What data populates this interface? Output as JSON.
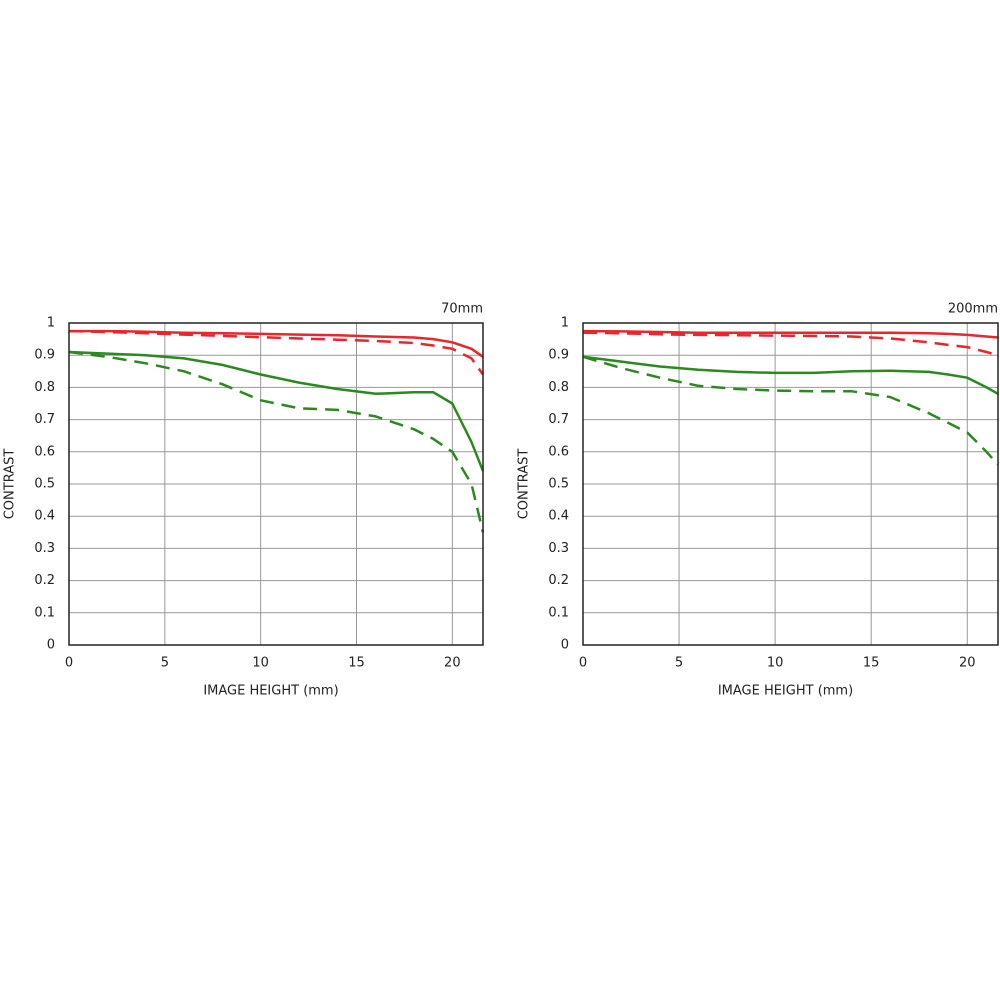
{
  "chart_data": [
    {
      "type": "line",
      "title": "70mm",
      "ylabel": "CONTRAST",
      "xlabel": "IMAGE HEIGHT (mm)",
      "x": [
        0,
        2,
        4,
        6,
        8,
        10,
        12,
        14,
        16,
        18,
        19,
        20,
        21,
        21.6
      ],
      "series": [
        {
          "color": "#e8262b",
          "dashed": false,
          "values": [
            0.975,
            0.975,
            0.973,
            0.97,
            0.968,
            0.966,
            0.964,
            0.962,
            0.958,
            0.955,
            0.95,
            0.94,
            0.92,
            0.895
          ]
        },
        {
          "color": "#e8262b",
          "dashed": true,
          "values": [
            0.975,
            0.972,
            0.968,
            0.964,
            0.96,
            0.956,
            0.952,
            0.948,
            0.944,
            0.938,
            0.93,
            0.92,
            0.89,
            0.84
          ]
        },
        {
          "color": "#2a8a1f",
          "dashed": false,
          "values": [
            0.91,
            0.905,
            0.9,
            0.89,
            0.87,
            0.84,
            0.815,
            0.795,
            0.78,
            0.785,
            0.785,
            0.75,
            0.63,
            0.54
          ]
        },
        {
          "color": "#2a8a1f",
          "dashed": true,
          "values": [
            0.91,
            0.895,
            0.875,
            0.85,
            0.81,
            0.76,
            0.735,
            0.73,
            0.71,
            0.67,
            0.64,
            0.6,
            0.5,
            0.35
          ]
        }
      ],
      "xlim": [
        0,
        21.6
      ],
      "xticks": [
        0,
        5,
        10,
        15,
        20
      ],
      "ylim": [
        0,
        1
      ],
      "yticks": [
        0,
        0.1,
        0.2,
        0.3,
        0.4,
        0.5,
        0.6,
        0.7,
        0.8,
        0.9,
        1
      ],
      "grid": true
    },
    {
      "type": "line",
      "title": "200mm",
      "ylabel": "CONTRAST",
      "xlabel": "IMAGE HEIGHT (mm)",
      "x": [
        0,
        2,
        4,
        6,
        8,
        10,
        12,
        14,
        16,
        18,
        19,
        20,
        21,
        21.6
      ],
      "series": [
        {
          "color": "#e8262b",
          "dashed": false,
          "values": [
            0.975,
            0.974,
            0.972,
            0.97,
            0.97,
            0.97,
            0.97,
            0.97,
            0.97,
            0.968,
            0.966,
            0.963,
            0.958,
            0.955
          ]
        },
        {
          "color": "#e8262b",
          "dashed": true,
          "values": [
            0.97,
            0.968,
            0.965,
            0.963,
            0.962,
            0.961,
            0.96,
            0.958,
            0.952,
            0.94,
            0.932,
            0.925,
            0.91,
            0.9
          ]
        },
        {
          "color": "#2a8a1f",
          "dashed": false,
          "values": [
            0.895,
            0.88,
            0.865,
            0.855,
            0.848,
            0.845,
            0.845,
            0.85,
            0.852,
            0.848,
            0.84,
            0.83,
            0.8,
            0.78
          ]
        },
        {
          "color": "#2a8a1f",
          "dashed": true,
          "values": [
            0.895,
            0.86,
            0.83,
            0.805,
            0.795,
            0.79,
            0.788,
            0.788,
            0.77,
            0.72,
            0.69,
            0.66,
            0.6,
            0.56
          ]
        }
      ],
      "xlim": [
        0,
        21.6
      ],
      "xticks": [
        0,
        5,
        10,
        15,
        20
      ],
      "ylim": [
        0,
        1
      ],
      "yticks": [
        0,
        0.1,
        0.2,
        0.3,
        0.4,
        0.5,
        0.6,
        0.7,
        0.8,
        0.9,
        1
      ],
      "grid": true
    }
  ]
}
